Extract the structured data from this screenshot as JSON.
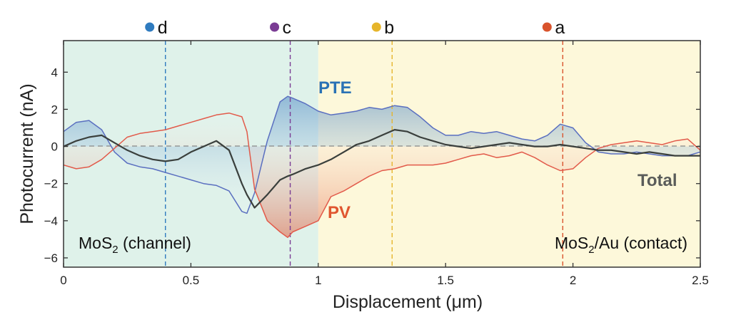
{
  "chart_data": {
    "type": "line",
    "xlabel": "Displacement (μm)",
    "ylabel": "Photocurrent (nA)",
    "xlim": [
      0,
      2.5
    ],
    "ylim": [
      -6.5,
      5.7
    ],
    "xticks": [
      0,
      0.5,
      1,
      1.5,
      2,
      2.5
    ],
    "xtick_labels": [
      "0",
      "0.5",
      "1",
      "1.5",
      "2",
      "2.5"
    ],
    "yticks": [
      -6,
      -4,
      -2,
      0,
      2,
      4
    ],
    "ytick_labels": [
      "−6",
      "−4",
      "−2",
      "0",
      "2",
      "4"
    ],
    "grid": false,
    "regions": [
      {
        "x_start": 0,
        "x_end": 1,
        "label_main": "MoS",
        "label_sub": "2",
        "label_rest": " (channel)",
        "color": "#dff2ea"
      },
      {
        "x_start": 1,
        "x_end": 2.5,
        "label_main": "MoS",
        "label_sub": "2",
        "label_rest": "/Au (contact)",
        "color": "#fdf8da"
      }
    ],
    "markers": [
      {
        "label": "d",
        "x": 0.4,
        "color": "#2f7bbf"
      },
      {
        "label": "c",
        "x": 0.89,
        "color": "#7a3c94"
      },
      {
        "label": "b",
        "x": 1.29,
        "color": "#e6b52b"
      },
      {
        "label": "a",
        "x": 1.96,
        "color": "#d9532c"
      }
    ],
    "series": [
      {
        "name": "PTE",
        "color": "#5a6fc0",
        "label_color": "#2a72b5",
        "x": [
          0,
          0.05,
          0.1,
          0.15,
          0.2,
          0.25,
          0.3,
          0.35,
          0.4,
          0.45,
          0.5,
          0.55,
          0.6,
          0.65,
          0.7,
          0.72,
          0.75,
          0.8,
          0.85,
          0.88,
          0.9,
          0.95,
          1.0,
          1.05,
          1.1,
          1.15,
          1.2,
          1.25,
          1.3,
          1.35,
          1.4,
          1.45,
          1.5,
          1.55,
          1.6,
          1.65,
          1.7,
          1.75,
          1.8,
          1.85,
          1.9,
          1.95,
          2.0,
          2.05,
          2.1,
          2.15,
          2.2,
          2.25,
          2.3,
          2.35,
          2.4,
          2.45,
          2.5
        ],
        "y": [
          0.8,
          1.3,
          1.4,
          0.9,
          -0.3,
          -0.9,
          -1.1,
          -1.2,
          -1.4,
          -1.6,
          -1.8,
          -2.0,
          -2.1,
          -2.4,
          -3.5,
          -3.6,
          -2.5,
          0.3,
          2.4,
          2.7,
          2.6,
          2.3,
          1.9,
          1.7,
          1.8,
          1.9,
          2.1,
          2.0,
          2.2,
          2.1,
          1.6,
          1.0,
          0.6,
          0.6,
          0.8,
          0.7,
          0.8,
          0.6,
          0.4,
          0.3,
          0.6,
          1.2,
          1.0,
          0.2,
          -0.3,
          -0.4,
          -0.4,
          -0.3,
          -0.4,
          -0.5,
          -0.5,
          -0.5,
          -0.3
        ]
      },
      {
        "name": "PV",
        "color": "#e25a4a",
        "label_color": "#e0562f",
        "x": [
          0,
          0.05,
          0.1,
          0.15,
          0.2,
          0.25,
          0.3,
          0.35,
          0.4,
          0.45,
          0.5,
          0.55,
          0.6,
          0.65,
          0.7,
          0.72,
          0.75,
          0.8,
          0.85,
          0.88,
          0.9,
          0.95,
          1.0,
          1.05,
          1.1,
          1.15,
          1.2,
          1.25,
          1.3,
          1.35,
          1.4,
          1.45,
          1.5,
          1.55,
          1.6,
          1.65,
          1.7,
          1.75,
          1.8,
          1.85,
          1.9,
          1.95,
          2.0,
          2.05,
          2.1,
          2.15,
          2.2,
          2.25,
          2.3,
          2.35,
          2.4,
          2.45,
          2.5
        ],
        "y": [
          -1.0,
          -1.2,
          -1.1,
          -0.7,
          -0.1,
          0.5,
          0.7,
          0.8,
          0.9,
          1.1,
          1.3,
          1.5,
          1.7,
          1.8,
          1.6,
          0.8,
          -2.3,
          -4.0,
          -4.6,
          -4.9,
          -4.6,
          -4.3,
          -4.0,
          -2.7,
          -2.4,
          -2.0,
          -1.6,
          -1.3,
          -1.2,
          -1.0,
          -1.0,
          -1.0,
          -0.9,
          -0.7,
          -0.5,
          -0.4,
          -0.6,
          -0.5,
          -0.3,
          -0.6,
          -1.0,
          -1.3,
          -1.2,
          -0.6,
          -0.1,
          0.1,
          0.2,
          0.3,
          0.2,
          0.1,
          0.3,
          0.4,
          -0.2
        ]
      },
      {
        "name": "Total",
        "color": "#3a3f3c",
        "label_color": "#5a5c5a",
        "x": [
          0,
          0.05,
          0.1,
          0.15,
          0.2,
          0.25,
          0.3,
          0.35,
          0.4,
          0.45,
          0.5,
          0.55,
          0.6,
          0.65,
          0.7,
          0.72,
          0.75,
          0.8,
          0.85,
          0.88,
          0.9,
          0.95,
          1.0,
          1.05,
          1.1,
          1.15,
          1.2,
          1.25,
          1.3,
          1.35,
          1.4,
          1.45,
          1.5,
          1.55,
          1.6,
          1.65,
          1.7,
          1.75,
          1.8,
          1.85,
          1.9,
          1.95,
          2.0,
          2.05,
          2.1,
          2.15,
          2.2,
          2.25,
          2.3,
          2.35,
          2.4,
          2.45,
          2.5
        ],
        "y": [
          0.0,
          0.3,
          0.5,
          0.6,
          0.2,
          -0.2,
          -0.5,
          -0.7,
          -0.8,
          -0.7,
          -0.3,
          0.0,
          0.3,
          -0.2,
          -2.0,
          -2.6,
          -3.3,
          -2.6,
          -1.8,
          -1.6,
          -1.5,
          -1.2,
          -1.0,
          -0.7,
          -0.3,
          0.1,
          0.3,
          0.6,
          0.9,
          0.8,
          0.5,
          0.3,
          0.1,
          0.0,
          -0.1,
          0.0,
          0.1,
          0.2,
          0.1,
          0.0,
          0.0,
          0.1,
          0.0,
          -0.1,
          -0.2,
          -0.2,
          -0.3,
          -0.4,
          -0.3,
          -0.4,
          -0.5,
          -0.5,
          -0.5
        ]
      }
    ]
  }
}
